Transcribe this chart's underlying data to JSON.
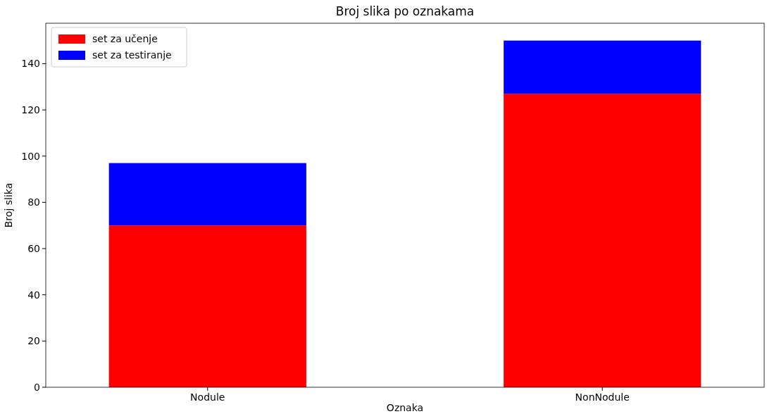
{
  "chart_data": {
    "type": "bar",
    "title": "Broj slika po oznakama",
    "xlabel": "Oznaka",
    "ylabel": "Broj slika",
    "categories": [
      "Nodule",
      "NonNodule"
    ],
    "stacked": true,
    "series": [
      {
        "name": "set za učenje",
        "color": "#ff0000",
        "values": [
          70,
          127
        ]
      },
      {
        "name": "set za testiranje",
        "color": "#0000ff",
        "values": [
          27,
          23
        ]
      }
    ],
    "ylim": [
      0,
      157.5
    ],
    "yticks": [
      0,
      20,
      40,
      60,
      80,
      100,
      120,
      140
    ],
    "legend": "top left",
    "grid": false
  }
}
